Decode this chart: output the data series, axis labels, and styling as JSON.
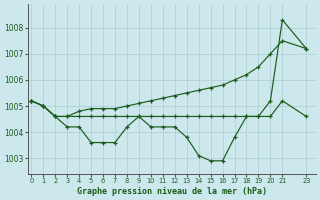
{
  "title": "Graphe pression niveau de la mer (hPa)",
  "background_color": "#cce8ec",
  "grid_color": "#aaccd0",
  "line_color": "#1a5c1a",
  "x_values": [
    0,
    1,
    2,
    3,
    4,
    5,
    6,
    7,
    8,
    9,
    10,
    11,
    12,
    13,
    14,
    15,
    16,
    17,
    18,
    19,
    20,
    21,
    23
  ],
  "x_labels": [
    "0",
    "1",
    "2",
    "3",
    "4",
    "5",
    "6",
    "7",
    "8",
    "9",
    "10",
    "11",
    "12",
    "13",
    "14",
    "15",
    "16",
    "17",
    "18",
    "19",
    "20",
    "21",
    "",
    "23"
  ],
  "series1": [
    1005.2,
    1005.0,
    1004.6,
    1004.2,
    1004.2,
    1003.6,
    1003.6,
    1003.6,
    1004.2,
    1004.6,
    1004.2,
    1004.2,
    1004.2,
    1003.8,
    1003.1,
    1002.9,
    1002.9,
    1003.8,
    1004.6,
    1004.6,
    1005.2,
    1008.3,
    1007.2
  ],
  "series2": [
    1005.2,
    1005.0,
    1004.6,
    1004.6,
    1004.6,
    1004.6,
    1004.6,
    1004.6,
    1004.6,
    1004.6,
    1004.6,
    1004.6,
    1004.6,
    1004.6,
    1004.6,
    1004.6,
    1004.6,
    1004.6,
    1004.6,
    1004.6,
    1004.6,
    1005.2,
    1004.6
  ],
  "series3": [
    1005.2,
    1005.0,
    1004.6,
    1004.6,
    1004.8,
    1004.9,
    1004.9,
    1004.9,
    1005.0,
    1005.1,
    1005.2,
    1005.3,
    1005.4,
    1005.5,
    1005.6,
    1005.7,
    1005.8,
    1006.0,
    1006.2,
    1006.5,
    1007.0,
    1007.5,
    1007.2
  ],
  "ylim": [
    1002.4,
    1008.9
  ],
  "yticks": [
    1003,
    1004,
    1005,
    1006,
    1007,
    1008
  ],
  "xlim": [
    -0.3,
    23.8
  ]
}
